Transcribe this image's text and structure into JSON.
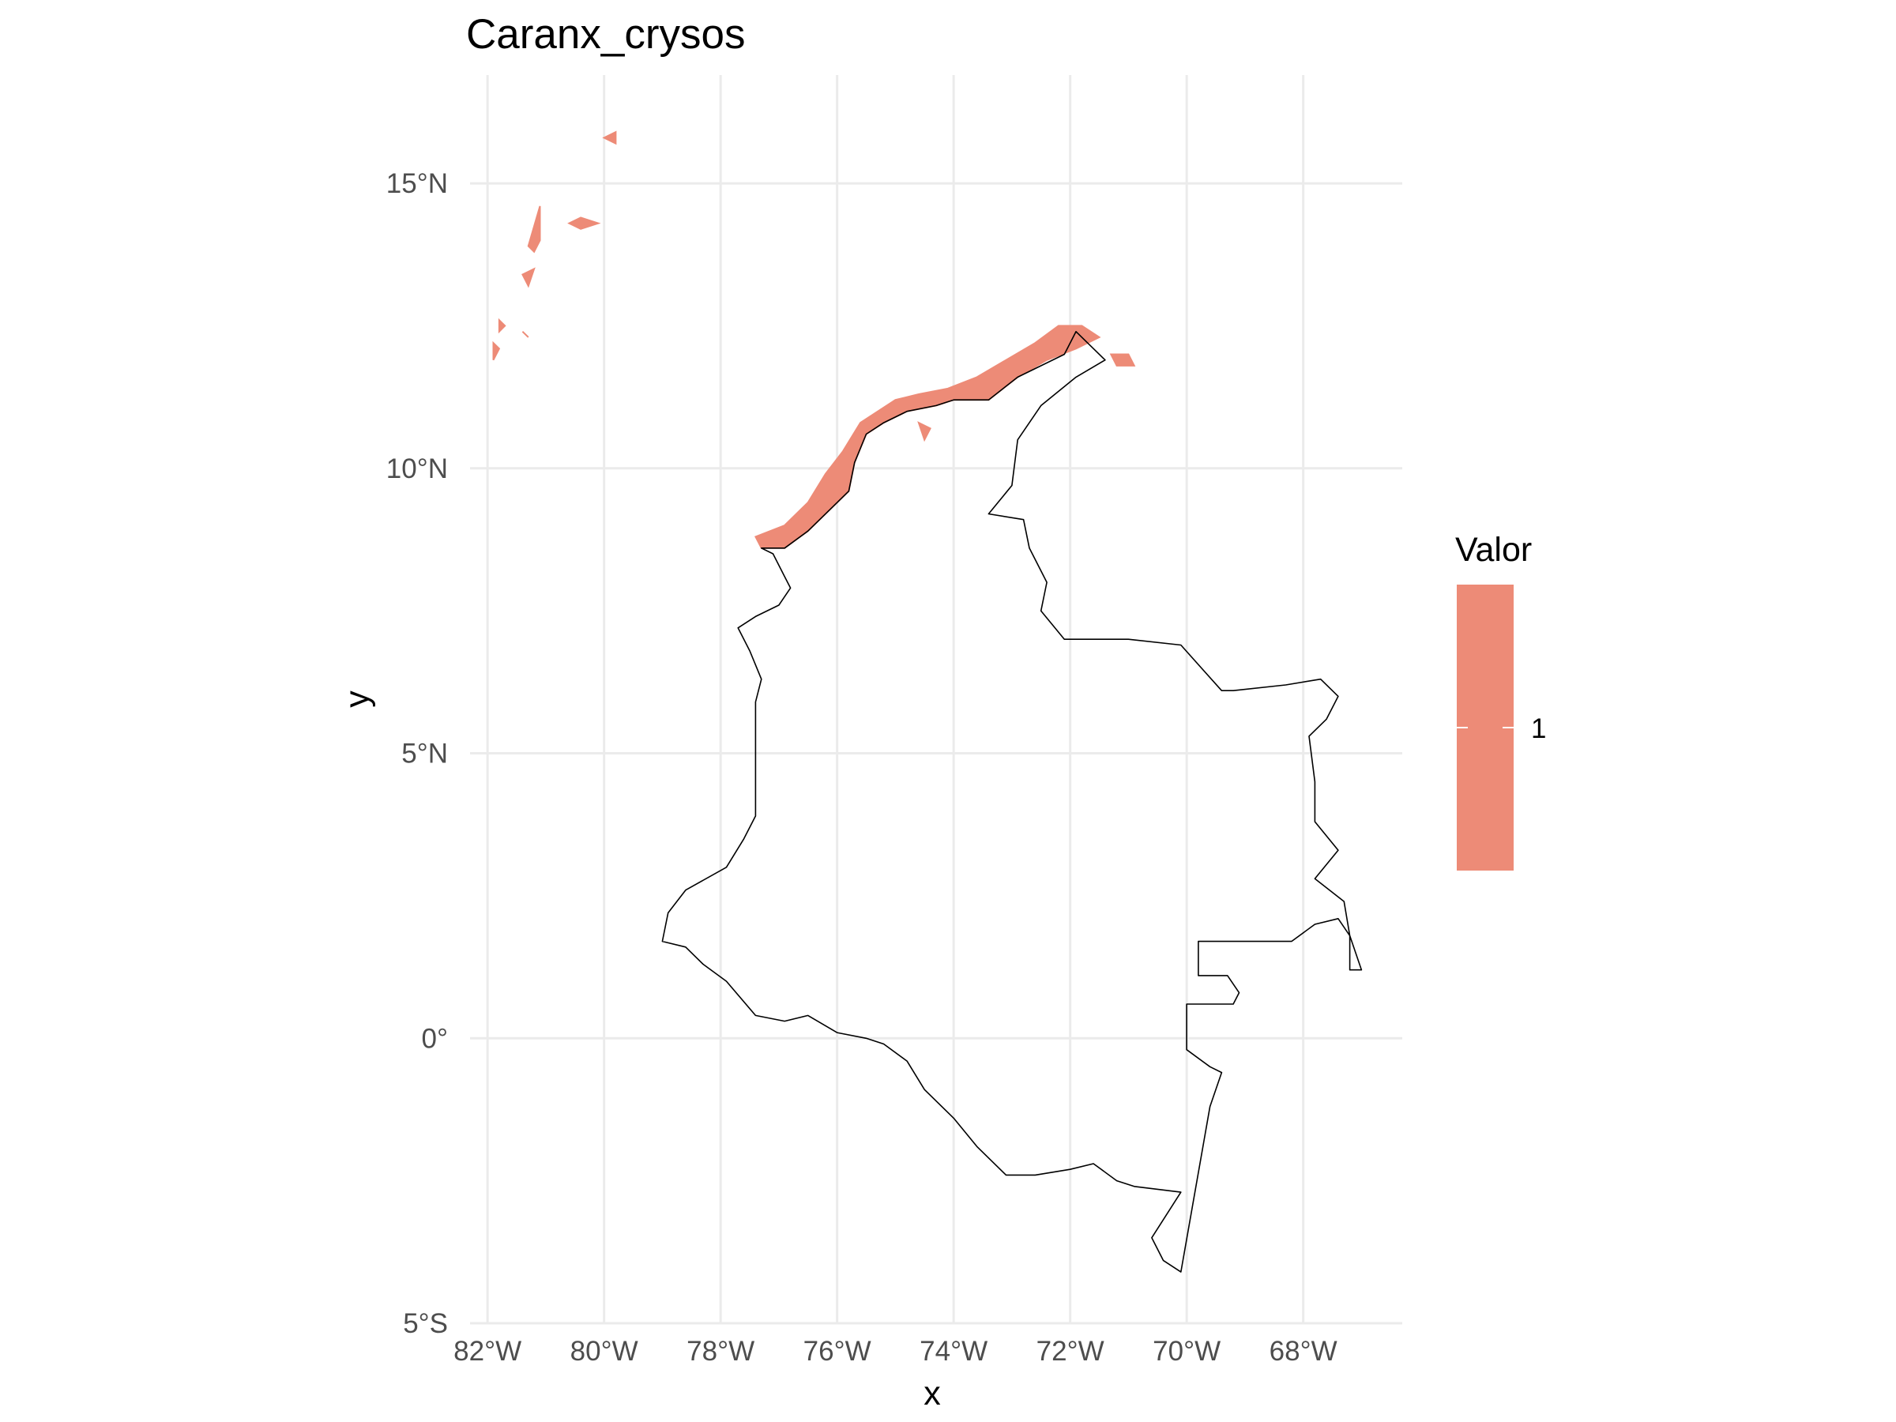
{
  "title": "Caranx_crysos",
  "map": {
    "x_axis_label": "x",
    "y_axis_label": "y",
    "x_ticks": [
      {
        "lon": -82,
        "label": "82°W"
      },
      {
        "lon": -80,
        "label": "80°W"
      },
      {
        "lon": -78,
        "label": "78°W"
      },
      {
        "lon": -76,
        "label": "76°W"
      },
      {
        "lon": -74,
        "label": "74°W"
      },
      {
        "lon": -72,
        "label": "72°W"
      },
      {
        "lon": -70,
        "label": "70°W"
      },
      {
        "lon": -68,
        "label": "68°W"
      }
    ],
    "y_ticks": [
      {
        "lat": 15,
        "label": "15°N"
      },
      {
        "lat": 10,
        "label": "10°N"
      },
      {
        "lat": 5,
        "label": "5°N"
      },
      {
        "lat": 0,
        "label": "0°"
      },
      {
        "lat": -5,
        "label": "5°S"
      }
    ],
    "xlim": [
      -82.3,
      -66.3
    ],
    "ylim": [
      -5.0,
      16.9
    ],
    "grid": true,
    "fill_color": "#ED8B77",
    "outline_color": "#000000",
    "country_outline": [
      [
        -77.3,
        8.6
      ],
      [
        -77.1,
        8.5
      ],
      [
        -76.9,
        8.1
      ],
      [
        -76.8,
        7.9
      ],
      [
        -77.0,
        7.6
      ],
      [
        -77.4,
        7.4
      ],
      [
        -77.7,
        7.2
      ],
      [
        -77.5,
        6.8
      ],
      [
        -77.3,
        6.3
      ],
      [
        -77.4,
        5.9
      ],
      [
        -77.4,
        5.3
      ],
      [
        -77.4,
        4.8
      ],
      [
        -77.4,
        4.2
      ],
      [
        -77.4,
        3.9
      ],
      [
        -77.6,
        3.5
      ],
      [
        -77.9,
        3.0
      ],
      [
        -78.6,
        2.6
      ],
      [
        -78.9,
        2.2
      ],
      [
        -79.0,
        1.7
      ],
      [
        -78.6,
        1.6
      ],
      [
        -78.3,
        1.3
      ],
      [
        -77.9,
        1.0
      ],
      [
        -77.4,
        0.4
      ],
      [
        -76.9,
        0.3
      ],
      [
        -76.5,
        0.4
      ],
      [
        -76.0,
        0.1
      ],
      [
        -75.5,
        0.0
      ],
      [
        -75.2,
        -0.1
      ],
      [
        -74.8,
        -0.4
      ],
      [
        -74.5,
        -0.9
      ],
      [
        -74.0,
        -1.4
      ],
      [
        -73.6,
        -1.9
      ],
      [
        -73.1,
        -2.4
      ],
      [
        -72.6,
        -2.4
      ],
      [
        -72.0,
        -2.3
      ],
      [
        -71.6,
        -2.2
      ],
      [
        -71.2,
        -2.5
      ],
      [
        -70.9,
        -2.6
      ],
      [
        -70.1,
        -2.7
      ],
      [
        -70.6,
        -3.5
      ],
      [
        -70.4,
        -3.9
      ],
      [
        -70.1,
        -4.1
      ],
      [
        -69.6,
        -1.2
      ],
      [
        -69.4,
        -0.6
      ],
      [
        -69.6,
        -0.5
      ],
      [
        -70.0,
        -0.2
      ],
      [
        -70.0,
        0.6
      ],
      [
        -69.2,
        0.6
      ],
      [
        -69.1,
        0.8
      ],
      [
        -69.3,
        1.1
      ],
      [
        -69.8,
        1.1
      ],
      [
        -69.8,
        1.7
      ],
      [
        -68.2,
        1.7
      ],
      [
        -67.8,
        2.0
      ],
      [
        -67.4,
        2.1
      ],
      [
        -67.2,
        1.8
      ],
      [
        -67.2,
        1.2
      ],
      [
        -67.0,
        1.2
      ],
      [
        -67.2,
        1.8
      ],
      [
        -67.3,
        2.4
      ],
      [
        -67.8,
        2.8
      ],
      [
        -67.4,
        3.3
      ],
      [
        -67.8,
        3.8
      ],
      [
        -67.8,
        4.5
      ],
      [
        -67.9,
        5.3
      ],
      [
        -67.6,
        5.6
      ],
      [
        -67.4,
        6.0
      ],
      [
        -67.7,
        6.3
      ],
      [
        -68.3,
        6.2
      ],
      [
        -69.2,
        6.1
      ],
      [
        -69.4,
        6.1
      ],
      [
        -70.1,
        6.9
      ],
      [
        -71.0,
        7.0
      ],
      [
        -72.1,
        7.0
      ],
      [
        -72.5,
        7.5
      ],
      [
        -72.4,
        8.0
      ],
      [
        -72.7,
        8.6
      ],
      [
        -72.8,
        9.1
      ],
      [
        -73.4,
        9.2
      ],
      [
        -73.0,
        9.7
      ],
      [
        -72.9,
        10.5
      ],
      [
        -72.5,
        11.1
      ],
      [
        -71.9,
        11.6
      ],
      [
        -71.4,
        11.9
      ],
      [
        -71.7,
        12.2
      ],
      [
        -71.9,
        12.4
      ],
      [
        -72.1,
        12.0
      ],
      [
        -72.9,
        11.6
      ],
      [
        -73.4,
        11.2
      ],
      [
        -74.0,
        11.2
      ],
      [
        -74.3,
        11.1
      ],
      [
        -74.8,
        11.0
      ],
      [
        -75.2,
        10.8
      ],
      [
        -75.5,
        10.6
      ],
      [
        -75.7,
        10.1
      ],
      [
        -75.8,
        9.6
      ],
      [
        -76.1,
        9.3
      ],
      [
        -76.5,
        8.9
      ],
      [
        -76.9,
        8.6
      ],
      [
        -77.3,
        8.6
      ]
    ],
    "presence_areas": [
      [
        [
          -77.4,
          8.8
        ],
        [
          -76.9,
          9.0
        ],
        [
          -76.5,
          9.4
        ],
        [
          -76.2,
          9.9
        ],
        [
          -75.9,
          10.3
        ],
        [
          -75.6,
          10.8
        ],
        [
          -75.0,
          11.2
        ],
        [
          -74.6,
          11.3
        ],
        [
          -74.1,
          11.4
        ],
        [
          -73.6,
          11.6
        ],
        [
          -73.1,
          11.9
        ],
        [
          -72.6,
          12.2
        ],
        [
          -72.2,
          12.5
        ],
        [
          -71.8,
          12.5
        ],
        [
          -71.5,
          12.3
        ],
        [
          -71.9,
          12.1
        ],
        [
          -72.4,
          11.9
        ],
        [
          -72.9,
          11.6
        ],
        [
          -73.4,
          11.2
        ],
        [
          -74.0,
          11.2
        ],
        [
          -74.3,
          11.1
        ],
        [
          -74.8,
          11.0
        ],
        [
          -75.2,
          10.8
        ],
        [
          -75.5,
          10.6
        ],
        [
          -75.7,
          10.1
        ],
        [
          -75.8,
          9.6
        ],
        [
          -76.1,
          9.3
        ],
        [
          -76.5,
          8.9
        ],
        [
          -76.9,
          8.6
        ],
        [
          -77.3,
          8.6
        ]
      ],
      [
        [
          -71.3,
          12.0
        ],
        [
          -71.0,
          12.0
        ],
        [
          -70.9,
          11.8
        ],
        [
          -71.2,
          11.8
        ]
      ],
      [
        [
          -81.3,
          13.9
        ],
        [
          -81.1,
          14.6
        ],
        [
          -81.1,
          14.0
        ],
        [
          -81.2,
          13.8
        ]
      ],
      [
        [
          -80.4,
          14.4
        ],
        [
          -80.1,
          14.3
        ],
        [
          -80.4,
          14.2
        ],
        [
          -80.6,
          14.3
        ]
      ],
      [
        [
          -81.4,
          13.4
        ],
        [
          -81.2,
          13.5
        ],
        [
          -81.3,
          13.2
        ]
      ],
      [
        [
          -81.8,
          12.6
        ],
        [
          -81.7,
          12.5
        ],
        [
          -81.8,
          12.4
        ]
      ],
      [
        [
          -81.9,
          12.2
        ],
        [
          -81.8,
          12.1
        ],
        [
          -81.9,
          11.9
        ]
      ],
      [
        [
          -81.4,
          12.4
        ],
        [
          -81.3,
          12.3
        ]
      ],
      [
        [
          -80.0,
          15.8
        ],
        [
          -79.8,
          15.9
        ],
        [
          -79.8,
          15.7
        ]
      ],
      [
        [
          -74.6,
          10.8
        ],
        [
          -74.5,
          10.5
        ],
        [
          -74.4,
          10.7
        ]
      ]
    ]
  },
  "legend": {
    "title": "Valor",
    "entries": [
      {
        "label": "1",
        "color": "#ED8B77"
      }
    ]
  }
}
